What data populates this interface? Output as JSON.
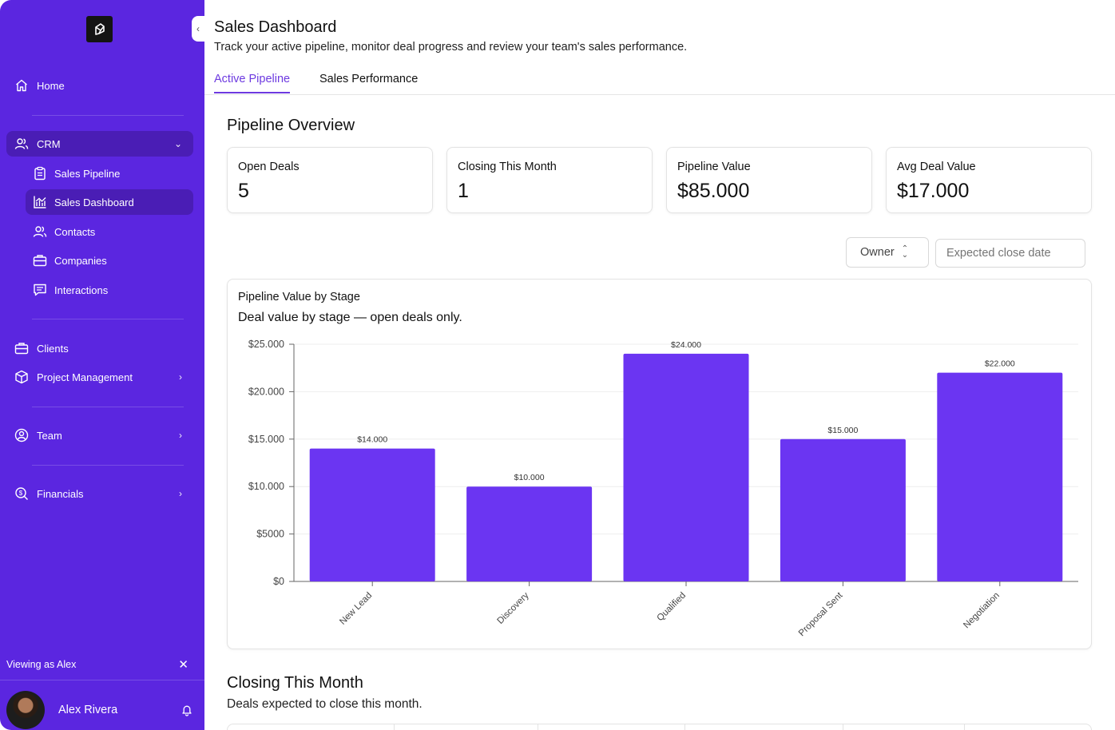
{
  "sidebar": {
    "nav": {
      "home": "Home",
      "crm": "CRM",
      "sales_pipeline": "Sales Pipeline",
      "sales_dashboard": "Sales Dashboard",
      "contacts": "Contacts",
      "companies": "Companies",
      "interactions": "Interactions",
      "clients": "Clients",
      "project_management": "Project Management",
      "team": "Team",
      "financials": "Financials"
    },
    "viewing_as": "Viewing as Alex",
    "user_name": "Alex Rivera",
    "colors": {
      "background": "#5b26e0",
      "active_item": "#4a1db5"
    }
  },
  "header": {
    "title": "Sales Dashboard",
    "subtitle": "Track your active pipeline, monitor deal progress and review your team's sales performance."
  },
  "tabs": [
    {
      "label": "Active Pipeline",
      "active": true
    },
    {
      "label": "Sales Performance",
      "active": false
    }
  ],
  "overview": {
    "title": "Pipeline Overview",
    "cards": [
      {
        "label": "Open Deals",
        "value": "5"
      },
      {
        "label": "Closing This Month",
        "value": "1"
      },
      {
        "label": "Pipeline Value",
        "value": "$85.000"
      },
      {
        "label": "Avg Deal Value",
        "value": "$17.000"
      }
    ]
  },
  "filters": {
    "owner_label": "Owner",
    "date_placeholder": "Expected close date"
  },
  "chart_card": {
    "title": "Pipeline Value by Stage",
    "subtitle": "Deal value by stage — open deals only."
  },
  "chart_data": {
    "type": "bar",
    "categories": [
      "New Lead",
      "Discovery",
      "Qualified",
      "Proposal Sent",
      "Negotiation"
    ],
    "values": [
      14000,
      10000,
      24000,
      15000,
      22000
    ],
    "value_labels": [
      "$14.000",
      "$10.000",
      "$24.000",
      "$15.000",
      "$22.000"
    ],
    "yticks": [
      0,
      5000,
      10000,
      15000,
      20000,
      25000
    ],
    "ytick_labels": [
      "$0",
      "$5000",
      "$10.000",
      "$15.000",
      "$20.000",
      "$25.000"
    ],
    "ylim": [
      0,
      25000
    ],
    "grid": true,
    "bar_color": "#6b35f2"
  },
  "closing": {
    "title": "Closing This Month",
    "subtitle": "Deals expected to close this month."
  }
}
